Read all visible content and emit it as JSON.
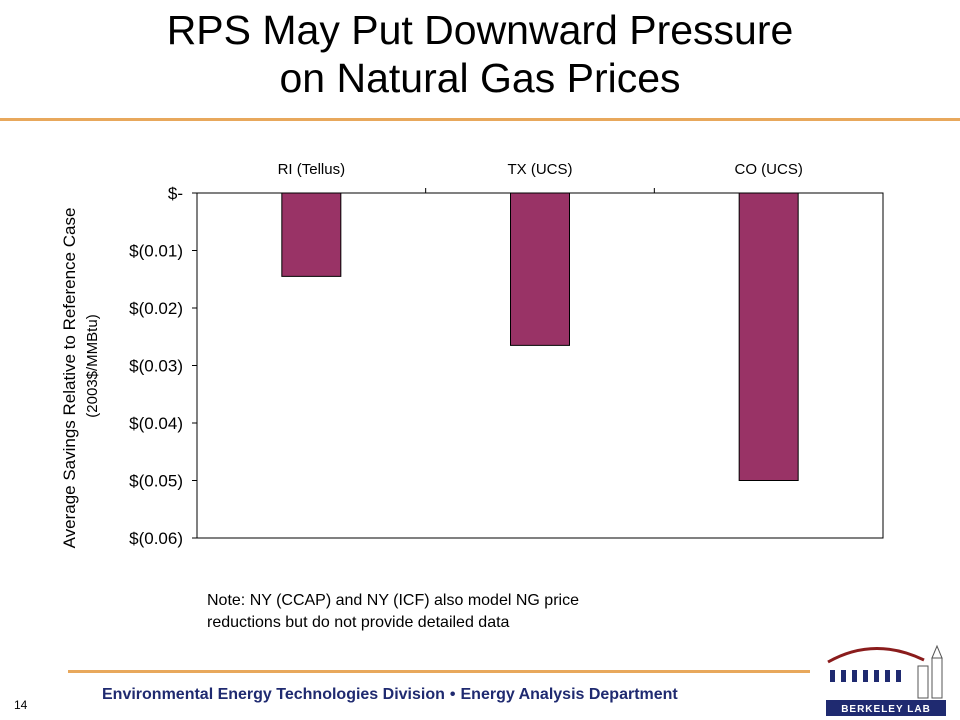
{
  "slide": {
    "title_line1": "RPS May Put Downward Pressure",
    "title_line2": "on Natural Gas Prices",
    "note": "Note: NY (CCAP) and NY (ICF) also model NG price\nreductions but do not provide detailed data",
    "footer_left": "Environmental Energy Technologies Division",
    "footer_sep": "•",
    "footer_right": "Energy Analysis Department",
    "page_number": "14",
    "accent_color": "#e8a85c",
    "footer_color": "#1f2a70",
    "logo_text": "BERKELEY LAB",
    "logo_icon": "berkeley-lab-logo-icon"
  },
  "chart_data": {
    "type": "bar",
    "categories": [
      "RI (Tellus)",
      "TX (UCS)",
      "CO (UCS)"
    ],
    "values": [
      -0.0145,
      -0.0265,
      -0.05
    ],
    "ylabel": "Average Savings Relative to Reference Case",
    "ylabel_line2": "(2003$/MMBtu)",
    "ylim": [
      -0.06,
      0
    ],
    "yticks": [
      {
        "value": 0,
        "label": "$-"
      },
      {
        "value": -0.01,
        "label": "$(0.01)"
      },
      {
        "value": -0.02,
        "label": "$(0.02)"
      },
      {
        "value": -0.03,
        "label": "$(0.03)"
      },
      {
        "value": -0.04,
        "label": "$(0.04)"
      },
      {
        "value": -0.05,
        "label": "$(0.05)"
      },
      {
        "value": -0.06,
        "label": "$(0.06)"
      }
    ],
    "category_labels_position": "top",
    "grid": false,
    "bar_color": "#993366"
  }
}
